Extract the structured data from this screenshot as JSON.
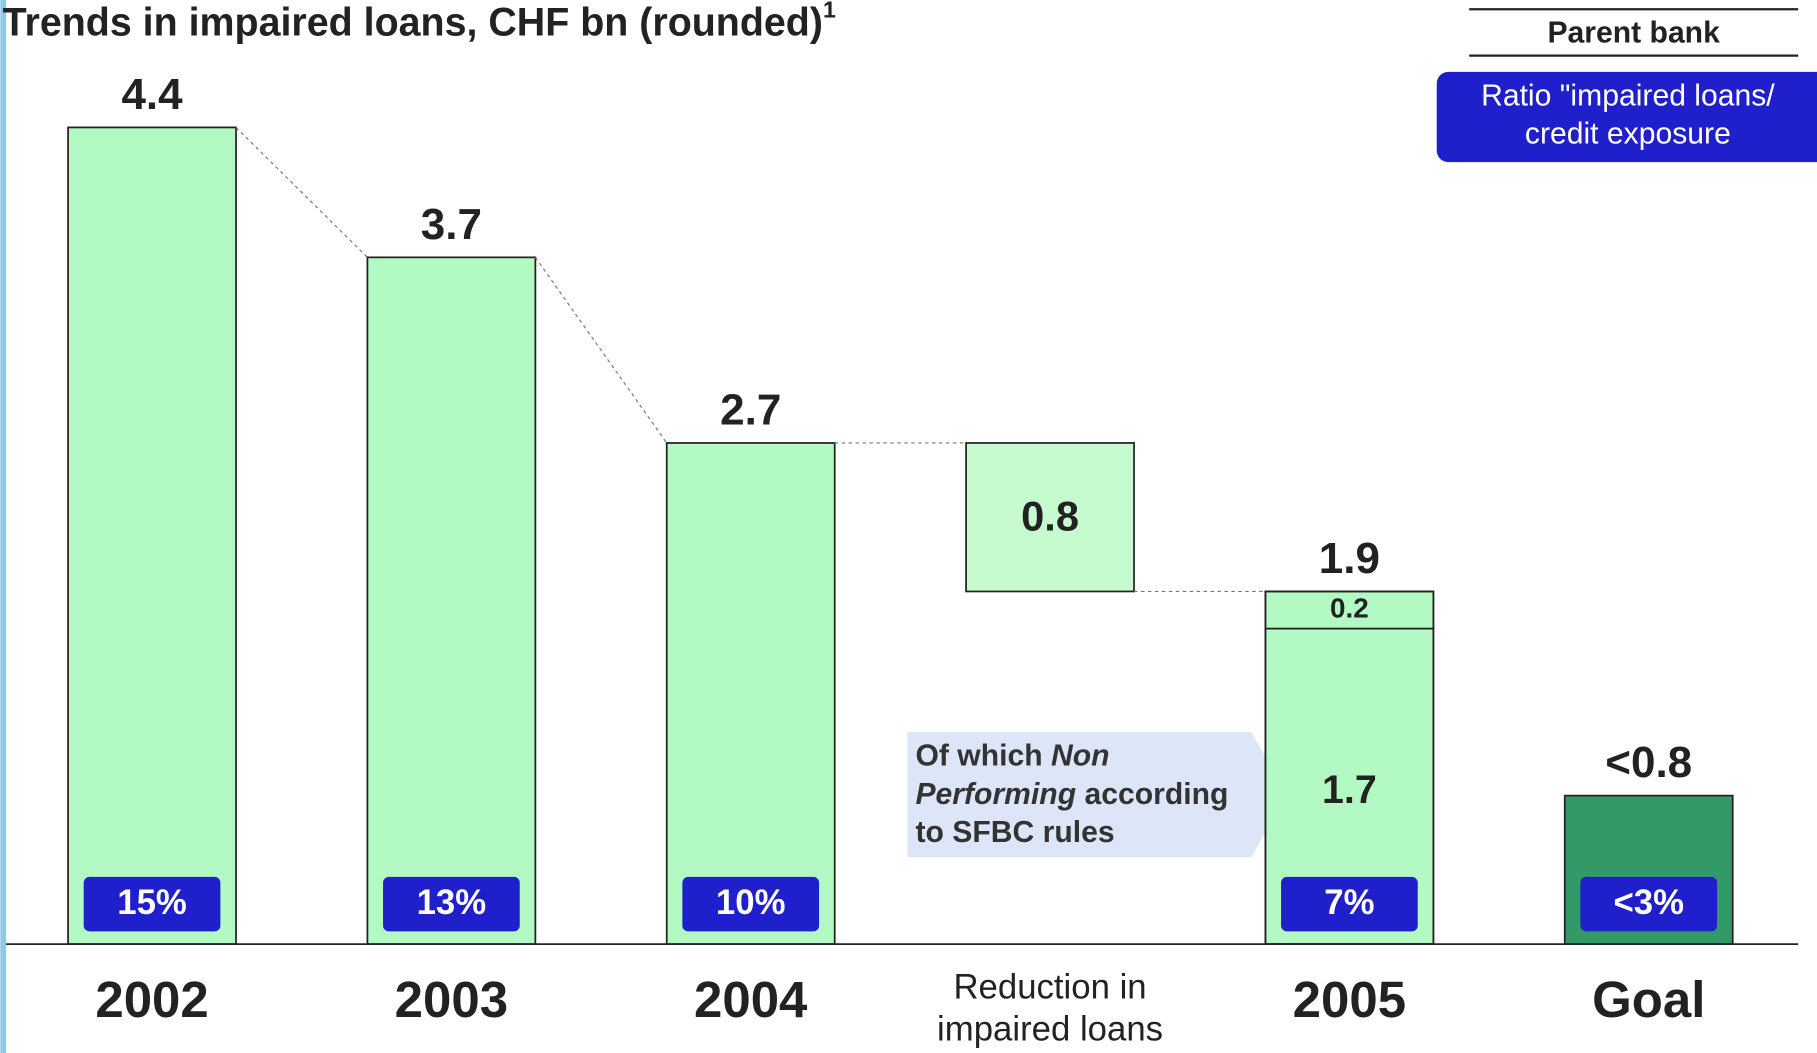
{
  "chart_data": {
    "type": "waterfall",
    "title": "Trends in impaired loans, CHF bn (rounded)",
    "title_note": "1",
    "header": "Parent bank",
    "ratio_legend": "Ratio \"impaired loans/ credit exposure",
    "categories": [
      "2002",
      "2003",
      "2004",
      "Reduction in impaired loans",
      "2005",
      "Goal"
    ],
    "kinds": [
      "total",
      "total",
      "total",
      "decrease",
      "total",
      "total"
    ],
    "values": [
      4.4,
      3.7,
      2.7,
      0.8,
      1.9,
      0.8
    ],
    "value_labels": [
      "4.4",
      "3.7",
      "2.7",
      "0.8",
      "1.9",
      "<0.8"
    ],
    "colors": [
      "#b3f9c3",
      "#b3f9c3",
      "#b3f9c3",
      "#c6fbd0",
      "#b3f9c3",
      "#339966"
    ],
    "segments_2005": {
      "values": [
        1.7,
        0.2
      ]
    },
    "ratios": [
      15,
      13,
      10,
      null,
      7,
      3
    ],
    "ratio_labels": [
      "15%",
      "13%",
      "10%",
      null,
      "7%",
      "<3%"
    ],
    "annotation": [
      "Of which ",
      "Non Performing",
      " according to SFBC rules"
    ]
  }
}
